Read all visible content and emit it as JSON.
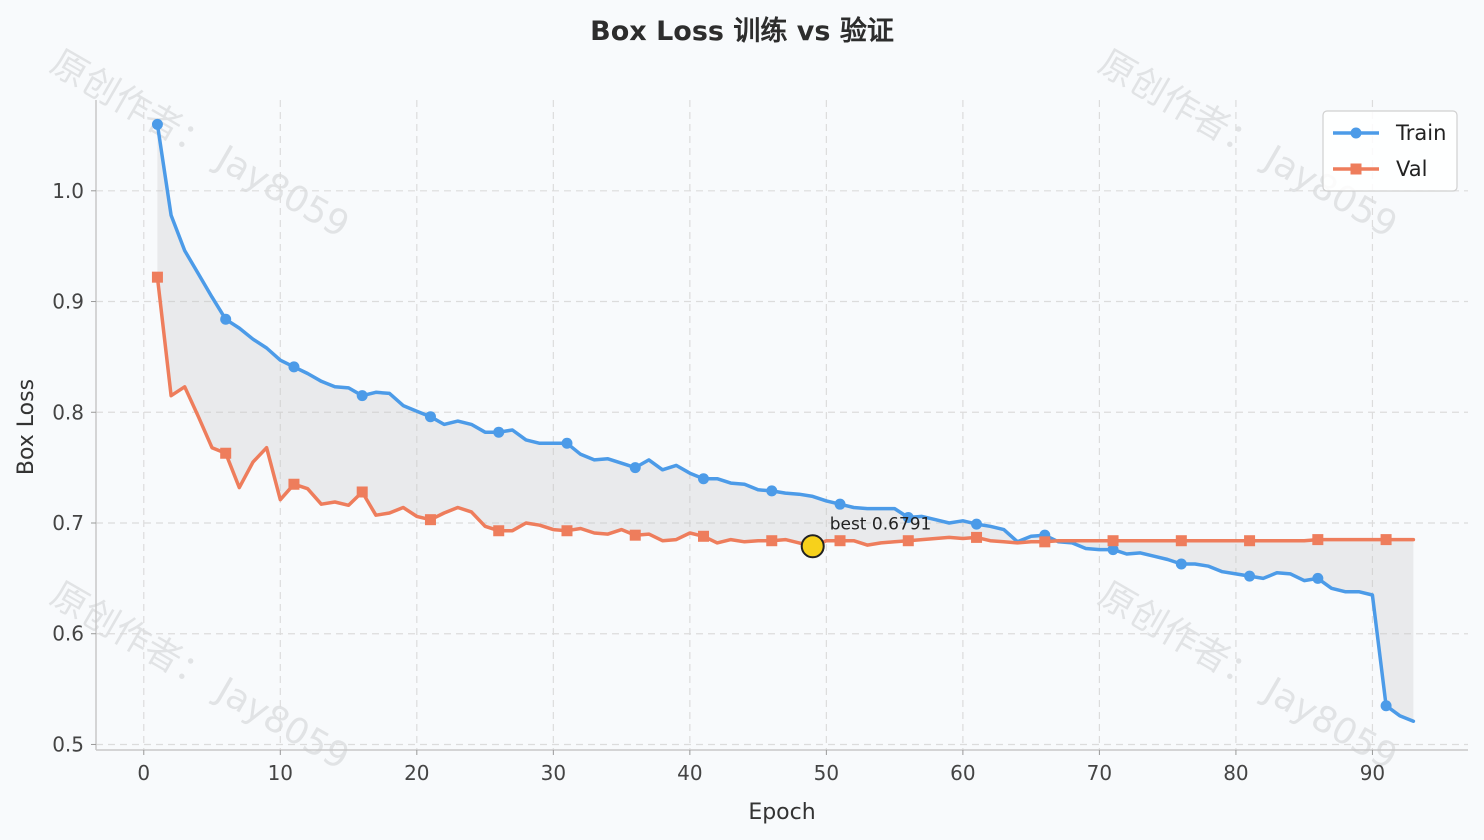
{
  "chart_data": {
    "type": "line",
    "title": "Box Loss 训练 vs 验证",
    "xlabel": "Epoch",
    "ylabel": "Box Loss",
    "xlim": [
      -3.5,
      97
    ],
    "ylim": [
      0.495,
      1.082
    ],
    "xticks": [
      0,
      10,
      20,
      30,
      40,
      50,
      60,
      70,
      80,
      90
    ],
    "yticks": [
      0.5,
      0.6,
      0.7,
      0.8,
      0.9,
      1.0
    ],
    "grid": true,
    "legend_position": "top-right",
    "x": [
      1,
      2,
      3,
      4,
      5,
      6,
      7,
      8,
      9,
      10,
      11,
      12,
      13,
      14,
      15,
      16,
      17,
      18,
      19,
      20,
      21,
      22,
      23,
      24,
      25,
      26,
      27,
      28,
      29,
      30,
      31,
      32,
      33,
      34,
      35,
      36,
      37,
      38,
      39,
      40,
      41,
      42,
      43,
      44,
      45,
      46,
      47,
      48,
      49,
      50,
      51,
      52,
      53,
      54,
      55,
      56,
      57,
      58,
      59,
      60,
      61,
      62,
      63,
      64,
      65,
      66,
      67,
      68,
      69,
      70,
      71,
      72,
      73,
      74,
      75,
      76,
      77,
      78,
      79,
      80,
      81,
      82,
      83,
      84,
      85,
      86,
      87,
      88,
      89,
      90,
      91,
      92,
      93
    ],
    "series": [
      {
        "name": "Train",
        "color": "#4c9be8",
        "marker": "circle",
        "marker_every": 5,
        "values": [
          1.06,
          0.978,
          0.946,
          0.925,
          0.904,
          0.884,
          0.876,
          0.866,
          0.858,
          0.847,
          0.841,
          0.835,
          0.828,
          0.823,
          0.822,
          0.815,
          0.818,
          0.817,
          0.806,
          0.801,
          0.796,
          0.789,
          0.792,
          0.789,
          0.782,
          0.782,
          0.784,
          0.775,
          0.772,
          0.772,
          0.772,
          0.762,
          0.757,
          0.758,
          0.754,
          0.75,
          0.757,
          0.748,
          0.752,
          0.745,
          0.74,
          0.74,
          0.736,
          0.735,
          0.73,
          0.729,
          0.727,
          0.726,
          0.724,
          0.72,
          0.717,
          0.714,
          0.713,
          0.713,
          0.713,
          0.705,
          0.706,
          0.703,
          0.7,
          0.702,
          0.699,
          0.697,
          0.694,
          0.683,
          0.688,
          0.689,
          0.683,
          0.682,
          0.677,
          0.676,
          0.676,
          0.672,
          0.673,
          0.67,
          0.667,
          0.663,
          0.663,
          0.661,
          0.656,
          0.654,
          0.652,
          0.65,
          0.655,
          0.654,
          0.648,
          0.65,
          0.641,
          0.638,
          0.638,
          0.635,
          0.535,
          0.526,
          0.521
        ]
      },
      {
        "name": "Val",
        "color": "#ee7d5c",
        "marker": "square",
        "marker_every": 5,
        "values": [
          0.922,
          0.815,
          0.823,
          0.796,
          0.768,
          0.763,
          0.732,
          0.755,
          0.768,
          0.721,
          0.735,
          0.731,
          0.717,
          0.719,
          0.716,
          0.728,
          0.707,
          0.709,
          0.714,
          0.706,
          0.703,
          0.709,
          0.714,
          0.71,
          0.697,
          0.693,
          0.693,
          0.7,
          0.698,
          0.694,
          0.693,
          0.695,
          0.691,
          0.69,
          0.694,
          0.689,
          0.69,
          0.684,
          0.685,
          0.691,
          0.688,
          0.682,
          0.685,
          0.683,
          0.684,
          0.684,
          0.685,
          0.682,
          0.679,
          0.684,
          0.684,
          0.684,
          0.68,
          0.682,
          0.683,
          0.684,
          0.685,
          0.686,
          0.687,
          0.686,
          0.687,
          0.684,
          0.683,
          0.682,
          0.683,
          0.683,
          0.684,
          0.684,
          0.684,
          0.684,
          0.684,
          0.684,
          0.684,
          0.684,
          0.684,
          0.684,
          0.684,
          0.684,
          0.684,
          0.684,
          0.684,
          0.684,
          0.684,
          0.684,
          0.684,
          0.685,
          0.685,
          0.685,
          0.685,
          0.685,
          0.685,
          0.685,
          0.685
        ]
      }
    ],
    "best": {
      "x": 49,
      "y": 0.679,
      "label": "best 0.6791",
      "color": "#f7d11b"
    },
    "fill_between_color": "#c8c8c8",
    "watermark": "原创作者： Jay8059"
  }
}
